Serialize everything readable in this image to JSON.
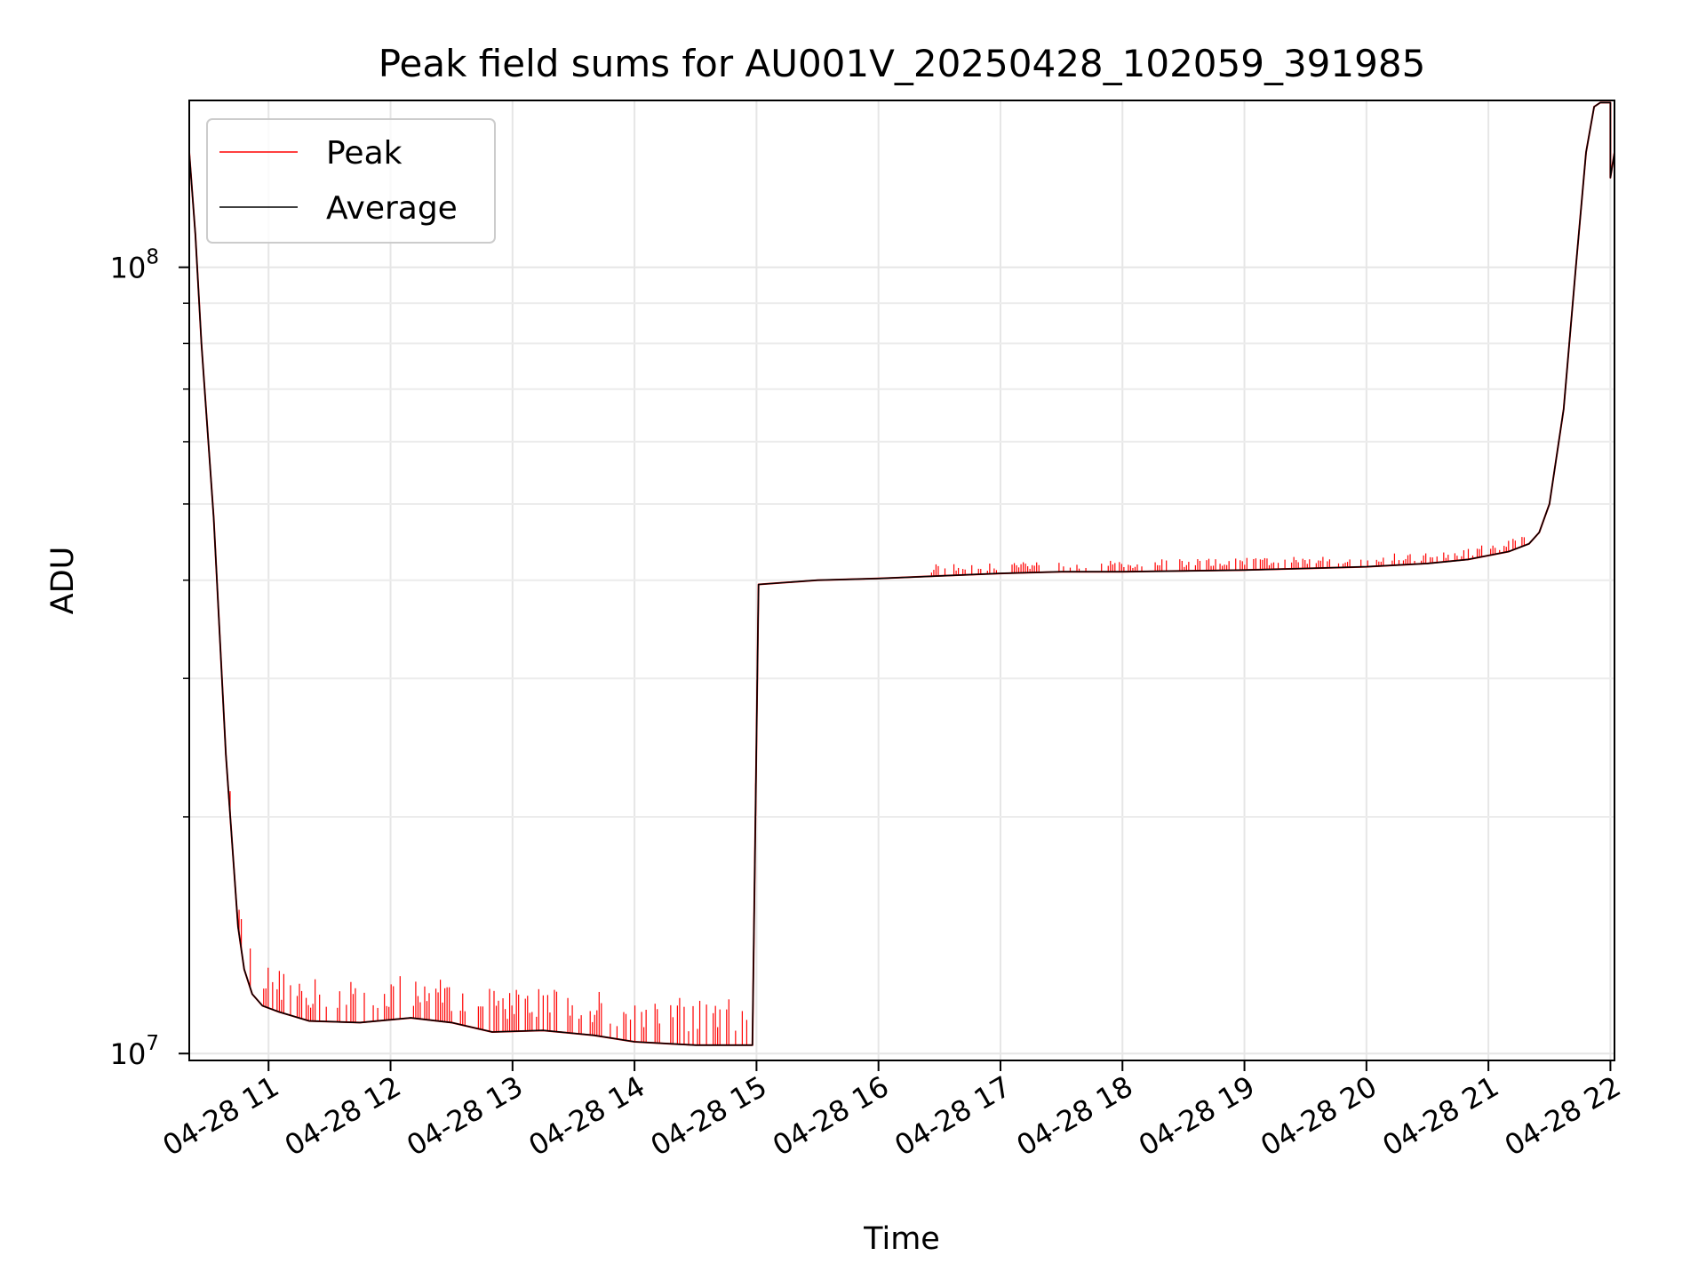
{
  "chart_data": {
    "type": "line",
    "title": "Peak field sums for AU001V_20250428_102059_391985",
    "xlabel": "Time",
    "ylabel": "ADU",
    "yscale": "log",
    "ylim": [
      9800000,
      163000000
    ],
    "xlim": [
      "2025-04-28 10:21",
      "2025-04-28 22:02"
    ],
    "grid": true,
    "legend_position": "upper left",
    "x_tick_labels": [
      "04-28 11",
      "04-28 12",
      "04-28 13",
      "04-28 14",
      "04-28 15",
      "04-28 16",
      "04-28 17",
      "04-28 18",
      "04-28 19",
      "04-28 20",
      "04-28 21",
      "04-28 22"
    ],
    "y_tick_labels": [
      {
        "base": "10",
        "exp": "7"
      },
      {
        "base": "10",
        "exp": "8"
      }
    ],
    "x": [
      "2025-04-28 10:21",
      "2025-04-28 10:24",
      "2025-04-28 10:27",
      "2025-04-28 10:33",
      "2025-04-28 10:39",
      "2025-04-28 10:45",
      "2025-04-28 10:48",
      "2025-04-28 10:52",
      "2025-04-28 10:57",
      "2025-04-28 11:05",
      "2025-04-28 11:20",
      "2025-04-28 11:45",
      "2025-04-28 12:10",
      "2025-04-28 12:30",
      "2025-04-28 12:50",
      "2025-04-28 13:15",
      "2025-04-28 13:40",
      "2025-04-28 14:00",
      "2025-04-28 14:30",
      "2025-04-28 14:58",
      "2025-04-28 15:01",
      "2025-04-28 15:30",
      "2025-04-28 16:00",
      "2025-04-28 16:30",
      "2025-04-28 17:00",
      "2025-04-28 17:30",
      "2025-04-28 18:00",
      "2025-04-28 18:30",
      "2025-04-28 19:00",
      "2025-04-28 19:30",
      "2025-04-28 20:00",
      "2025-04-28 20:30",
      "2025-04-28 20:50",
      "2025-04-28 21:10",
      "2025-04-28 21:20",
      "2025-04-28 21:25",
      "2025-04-28 21:30",
      "2025-04-28 21:37",
      "2025-04-28 21:43",
      "2025-04-28 21:48",
      "2025-04-28 21:52",
      "2025-04-28 21:55",
      "2025-04-28 21:59",
      "2025-04-28 22:00",
      "2025-04-28 22:00",
      "2025-04-28 22:02"
    ],
    "series": [
      {
        "name": "Peak",
        "color": "#ff0000",
        "values": [
          140000000,
          110000000,
          80000000,
          48000000,
          24000000,
          14500000,
          12800000,
          11900000,
          11500000,
          11300000,
          11000000,
          10950000,
          11100000,
          10950000,
          10650000,
          10700000,
          10550000,
          10350000,
          10250000,
          10250000,
          39500000,
          40000000,
          40200000,
          40500000,
          40800000,
          41000000,
          41000000,
          41100000,
          41200000,
          41400000,
          41600000,
          42000000,
          42500000,
          43500000,
          44500000,
          46000000,
          50000000,
          66000000,
          100000000,
          140000000,
          160000000,
          162000000,
          162000000,
          162000000,
          130000000,
          140000000
        ],
        "spikes": [
          {
            "from": "2025-04-28 10:40",
            "to": "2025-04-28 15:00",
            "peak_excess_max": 1500000
          },
          {
            "from": "2025-04-28 16:25",
            "to": "2025-04-28 21:20",
            "peak_excess_max": 1500000
          }
        ]
      },
      {
        "name": "Average",
        "color": "#000000",
        "values": [
          140000000,
          110000000,
          80000000,
          48000000,
          24000000,
          14500000,
          12800000,
          11900000,
          11500000,
          11300000,
          11000000,
          10950000,
          11100000,
          10950000,
          10650000,
          10700000,
          10550000,
          10350000,
          10250000,
          10250000,
          39500000,
          40000000,
          40200000,
          40500000,
          40800000,
          41000000,
          41000000,
          41100000,
          41200000,
          41400000,
          41600000,
          42000000,
          42500000,
          43500000,
          44500000,
          46000000,
          50000000,
          66000000,
          100000000,
          140000000,
          160000000,
          162000000,
          162000000,
          162000000,
          130000000,
          140000000
        ]
      }
    ]
  }
}
